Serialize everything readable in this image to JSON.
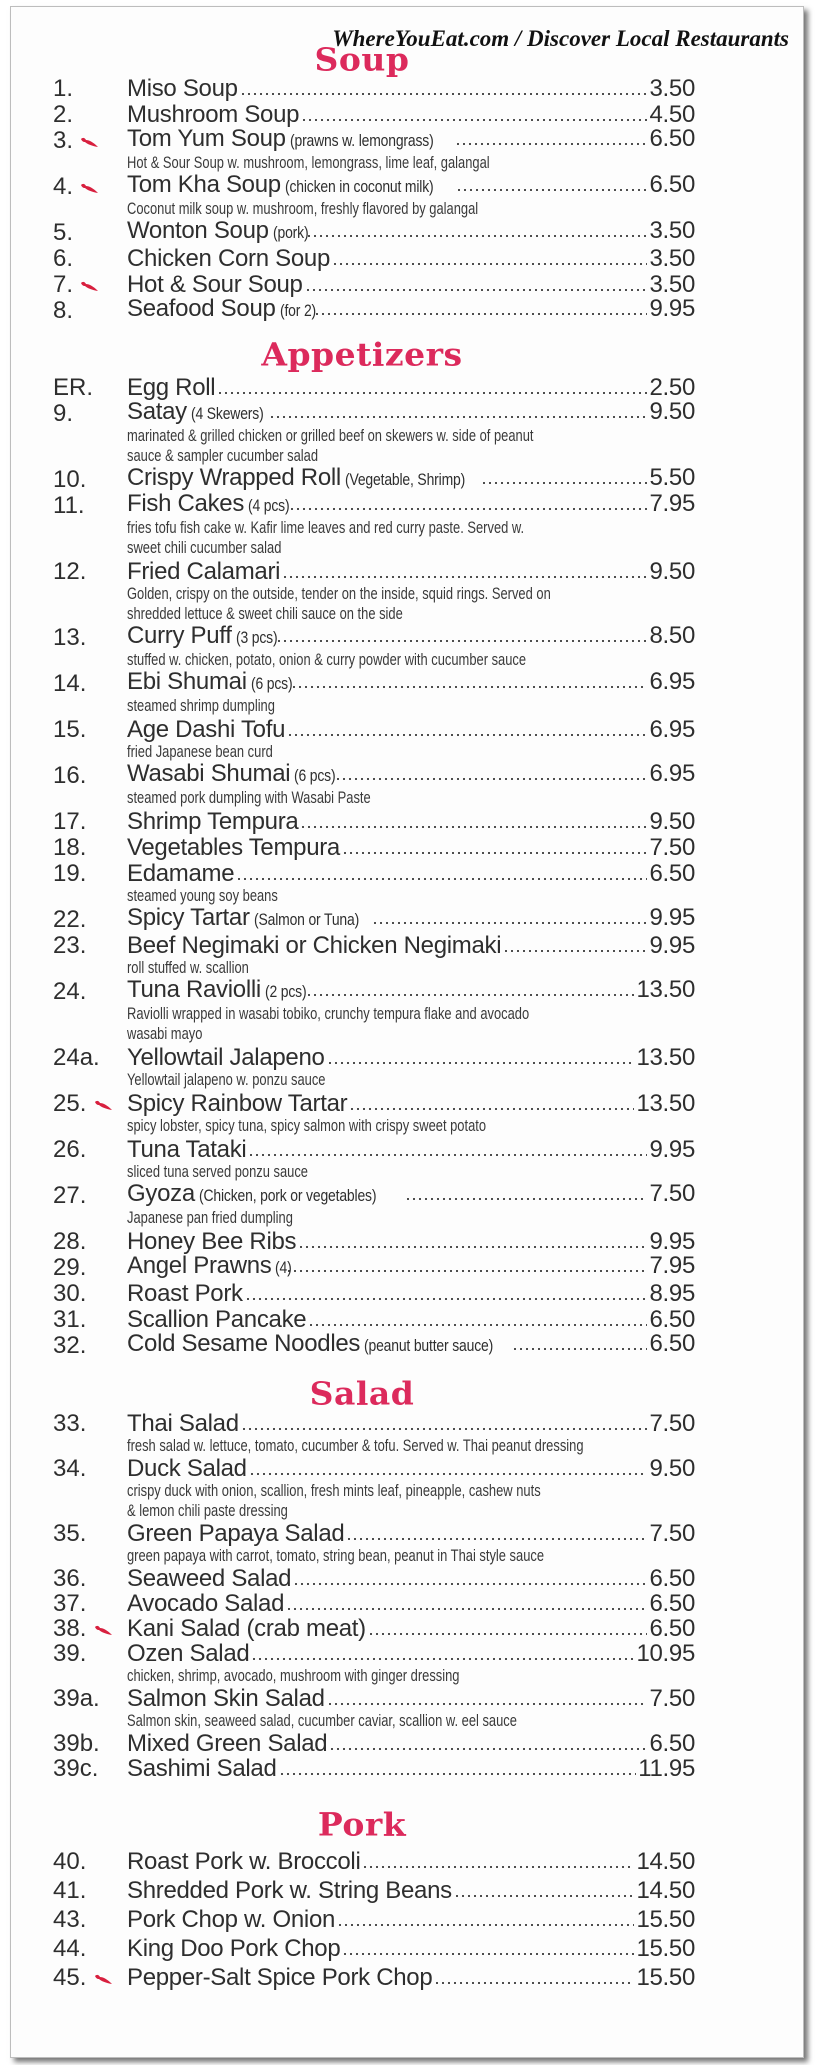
{
  "watermark": "WhereYouEat.com / Discover Local Restaurants",
  "colors": {
    "heading": "#dc2a5c",
    "text": "#2e2e2e",
    "chili": "#d8203f"
  },
  "sections": [
    {
      "key": "soup",
      "title": "Soup",
      "items": [
        {
          "num": "1.",
          "name": "Miso Soup",
          "price": "3.50"
        },
        {
          "num": "2.",
          "name": "Mushroom Soup",
          "price": "4.50"
        },
        {
          "num": "3.",
          "spicy": true,
          "name": "Tom Yum Soup",
          "note": "(prawns w. lemongrass)",
          "price": "6.50",
          "desc": [
            "Hot & Sour Soup w. mushroom, lemongrass, lime leaf, galangal"
          ]
        },
        {
          "num": "4.",
          "spicy": true,
          "name": "Tom Kha Soup",
          "note": "(chicken in coconut milk)",
          "price": "6.50",
          "desc": [
            "Coconut milk soup w. mushroom, freshly flavored by galangal"
          ]
        },
        {
          "num": "5.",
          "name": "Wonton Soup",
          "note": "(pork)",
          "price": "3.50"
        },
        {
          "num": "6.",
          "name": "Chicken Corn Soup",
          "price": "3.50"
        },
        {
          "num": "7.",
          "spicy": true,
          "name": "Hot & Sour Soup",
          "price": "3.50"
        },
        {
          "num": "8.",
          "name": "Seafood Soup",
          "note": "(for 2)",
          "price": "9.95"
        }
      ]
    },
    {
      "key": "appetizers",
      "title": "Appetizers",
      "items": [
        {
          "num": "ER.",
          "name": "Egg Roll",
          "price": "2.50"
        },
        {
          "num": "9.",
          "name": "Satay",
          "note": "(4 Skewers)",
          "price": "9.50",
          "desc": [
            "marinated & grilled chicken or grilled beef on skewers w. side of peanut",
            "sauce & sampler cucumber salad"
          ]
        },
        {
          "num": "10.",
          "name": "Crispy Wrapped Roll",
          "note": "(Vegetable, Shrimp)",
          "price": "5.50"
        },
        {
          "num": "11.",
          "name": "Fish Cakes",
          "note": "(4 pcs)",
          "price": "7.95",
          "desc": [
            "fries tofu fish cake w. Kafir lime leaves and red curry paste.  Served w.",
            "sweet chili cucumber salad"
          ]
        },
        {
          "num": "12.",
          "name": "Fried Calamari",
          "price": "9.50",
          "desc": [
            "Golden, crispy on the outside, tender on the inside, squid rings. Served on",
            "shredded lettuce & sweet chili sauce on the side"
          ]
        },
        {
          "num": "13.",
          "name": "Curry Puff",
          "note": "(3 pcs)",
          "price": "8.50",
          "desc": [
            "stuffed w. chicken, potato, onion & curry powder with cucumber sauce"
          ]
        },
        {
          "num": "14.",
          "name": "Ebi Shumai",
          "note": "(6 pcs)",
          "price": "6.95",
          "desc": [
            "steamed shrimp dumpling"
          ]
        },
        {
          "num": "15.",
          "name": "Age Dashi Tofu",
          "price": "6.95",
          "desc": [
            "fried Japanese bean curd"
          ]
        },
        {
          "num": "16.",
          "name": "Wasabi Shumai",
          "note": "(6 pcs)",
          "price": "6.95",
          "desc": [
            "steamed pork dumpling with Wasabi Paste"
          ]
        },
        {
          "num": "17.",
          "name": "Shrimp Tempura",
          "price": "9.50"
        },
        {
          "num": "18.",
          "name": "Vegetables Tempura",
          "price": "7.50"
        },
        {
          "num": "19.",
          "name": "Edamame",
          "price": "6.50",
          "desc": [
            "steamed young soy beans"
          ]
        },
        {
          "num": "22.",
          "name": "Spicy Tartar",
          "note": "(Salmon or Tuna)",
          "price": "9.95"
        },
        {
          "num": "23.",
          "name": "Beef Negimaki or Chicken Negimaki",
          "price": "9.95",
          "desc": [
            "roll stuffed w. scallion"
          ]
        },
        {
          "num": "24.",
          "name": "Tuna Raviolli",
          "note": "(2 pcs)",
          "price": "13.50",
          "desc": [
            "Raviolli wrapped in wasabi tobiko, crunchy tempura flake and avocado",
            "wasabi mayo"
          ]
        },
        {
          "num": "24a.",
          "name": "Yellowtail Jalapeno",
          "price": "13.50",
          "desc": [
            "Yellowtail jalapeno w. ponzu sauce"
          ]
        },
        {
          "num": "25.",
          "spicy": true,
          "name": "Spicy Rainbow Tartar",
          "price": "13.50",
          "desc": [
            "spicy lobster, spicy tuna, spicy salmon with crispy sweet potato"
          ]
        },
        {
          "num": "26.",
          "name": "Tuna Tataki",
          "price": "9.95",
          "desc": [
            "sliced tuna served ponzu sauce"
          ]
        },
        {
          "num": "27.",
          "name": "Gyoza",
          "note": "(Chicken, pork or vegetables)",
          "price": "7.50",
          "desc": [
            "Japanese pan fried dumpling"
          ]
        },
        {
          "num": "28.",
          "name": "Honey Bee Ribs",
          "price": "9.95"
        },
        {
          "num": "29.",
          "name": "Angel Prawns",
          "note": "(4)",
          "price": "7.95"
        },
        {
          "num": "30.",
          "name": "Roast Pork",
          "price": "8.95"
        },
        {
          "num": "31.",
          "name": "Scallion Pancake",
          "price": "6.50"
        },
        {
          "num": "32.",
          "name": "Cold Sesame Noodles",
          "note": "(peanut butter sauce)",
          "price": "6.50"
        }
      ]
    },
    {
      "key": "salad",
      "title": "Salad",
      "items": [
        {
          "num": "33.",
          "name": "Thai Salad",
          "price": "7.50",
          "desc": [
            "fresh salad w. lettuce, tomato, cucumber & tofu. Served w. Thai peanut dressing"
          ]
        },
        {
          "num": "34.",
          "name": "Duck Salad",
          "price": "9.50",
          "desc": [
            "crispy duck with onion, scallion, fresh mints leaf, pineapple, cashew nuts",
            "& lemon chili paste dressing"
          ]
        },
        {
          "num": "35.",
          "name": "Green Papaya Salad",
          "price": "7.50",
          "desc": [
            "green papaya with carrot, tomato, string bean, peanut in Thai style sauce"
          ]
        },
        {
          "num": "36.",
          "name": "Seaweed Salad",
          "price": "6.50"
        },
        {
          "num": "37.",
          "name": "Avocado Salad",
          "price": "6.50"
        },
        {
          "num": "38.",
          "spicy": true,
          "name": "Kani Salad (crab meat)",
          "price": "6.50"
        },
        {
          "num": "39.",
          "name": "Ozen Salad",
          "price": "10.95",
          "desc": [
            "chicken, shrimp, avocado, mushroom with ginger dressing"
          ]
        },
        {
          "num": "39a.",
          "name": "Salmon Skin Salad",
          "price": "7.50",
          "desc": [
            "Salmon skin, seaweed salad, cucumber caviar, scallion w. eel sauce"
          ]
        },
        {
          "num": "39b.",
          "name": "Mixed Green Salad",
          "price": "6.50"
        },
        {
          "num": "39c.",
          "name": "Sashimi Salad",
          "price": "11.95"
        }
      ]
    },
    {
      "key": "pork",
      "title": "Pork",
      "items": [
        {
          "num": "40.",
          "name": "Roast Pork w. Broccoli",
          "price": "14.50"
        },
        {
          "num": "41.",
          "name": "Shredded Pork w. String Beans",
          "price": "14.50"
        },
        {
          "num": "43.",
          "name": "Pork Chop w. Onion",
          "price": "15.50"
        },
        {
          "num": "44.",
          "name": "King Doo Pork Chop",
          "price": "15.50"
        },
        {
          "num": "45.",
          "spicy": true,
          "name": "Pepper-Salt Spice Pork Chop",
          "price": "15.50"
        }
      ]
    }
  ]
}
